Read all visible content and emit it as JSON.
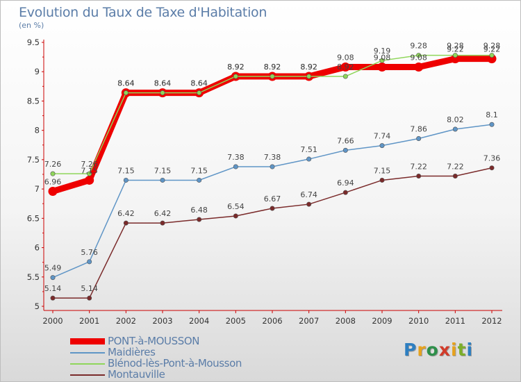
{
  "title": "Evolution du Taux de Taxe d'Habitation",
  "subtitle": "(en %)",
  "logo": {
    "letters": [
      "P",
      "r",
      "o",
      "x",
      "i",
      "t",
      "i"
    ],
    "colors": [
      "#2e7fc1",
      "#e7a21d",
      "#2e8f4a",
      "#d13b2a",
      "#e7a21d",
      "#7cae2a",
      "#2e7fc1"
    ]
  },
  "chart_data": {
    "type": "line",
    "title": "Evolution du Taux de Taxe d'Habitation",
    "ylabel": "(en %)",
    "ylim": [
      5,
      9.5
    ],
    "yticks": [
      "5",
      "5.5",
      "6",
      "6.5",
      "7",
      "7.5",
      "8",
      "8.5",
      "9",
      "9.5"
    ],
    "x": [
      "2000",
      "2001",
      "2002",
      "2003",
      "2004",
      "2005",
      "2006",
      "2007",
      "2008",
      "2009",
      "2010",
      "2011",
      "2012"
    ],
    "grid": false,
    "legend": "bottom-left",
    "series": [
      {
        "name": "PONT-à-MOUSSON",
        "color": "#ee0000",
        "width": 9,
        "values": [
          6.96,
          7.15,
          8.64,
          8.64,
          8.64,
          8.92,
          8.92,
          8.92,
          9.08,
          9.08,
          9.08,
          9.22,
          9.22
        ],
        "labels": [
          "6.96",
          "7.15",
          "8.64",
          "8.64",
          "8.64",
          "8.92",
          "8.92",
          "8.92",
          "9.08",
          "9.08",
          "9.08",
          "9.22",
          "9.22"
        ]
      },
      {
        "name": "Maidières",
        "color": "#5f95c6",
        "width": 1.5,
        "values": [
          5.49,
          5.76,
          7.15,
          7.15,
          7.15,
          7.38,
          7.38,
          7.51,
          7.66,
          7.74,
          7.86,
          8.02,
          8.1
        ],
        "labels": [
          "5.49",
          "5.76",
          "7.15",
          "7.15",
          "7.15",
          "7.38",
          "7.38",
          "7.51",
          "7.66",
          "7.74",
          "7.86",
          "8.02",
          "8.1"
        ]
      },
      {
        "name": "Blénod-lès-Pont-à-Mousson",
        "color": "#8fd65a",
        "width": 1.5,
        "values": [
          7.26,
          7.26,
          8.64,
          8.64,
          8.64,
          8.92,
          8.92,
          8.92,
          8.92,
          9.19,
          9.28,
          9.28,
          9.28
        ],
        "labels": [
          "7.26",
          "7.26",
          "8.64",
          "8.64",
          "8.64",
          "8.92",
          "8.92",
          "8.92",
          "8.92",
          "9.19",
          "9.28",
          "9.28",
          "9.28"
        ]
      },
      {
        "name": "Montauville",
        "color": "#7a2a2a",
        "width": 1.5,
        "values": [
          5.14,
          5.14,
          6.42,
          6.42,
          6.48,
          6.54,
          6.67,
          6.74,
          6.94,
          7.15,
          7.22,
          7.22,
          7.36
        ],
        "labels": [
          "5.14",
          "5.14",
          "6.42",
          "6.42",
          "6.48",
          "6.54",
          "6.67",
          "6.74",
          "6.94",
          "7.15",
          "7.22",
          "7.22",
          "7.36"
        ]
      }
    ]
  }
}
